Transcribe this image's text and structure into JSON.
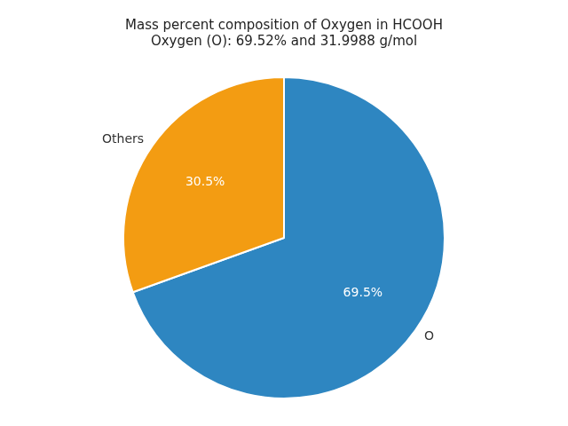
{
  "chart_data": {
    "type": "pie",
    "title": "Mass percent composition of Oxygen in HCOOH\nOxygen (O): 69.52% and 31.9988 g/mol",
    "categories": [
      "O",
      "Others"
    ],
    "values": [
      69.5,
      30.5
    ],
    "value_labels": [
      "69.5%",
      "30.5%"
    ],
    "colors": [
      "#2e86c1",
      "#f39c12"
    ],
    "data_labels": true
  }
}
